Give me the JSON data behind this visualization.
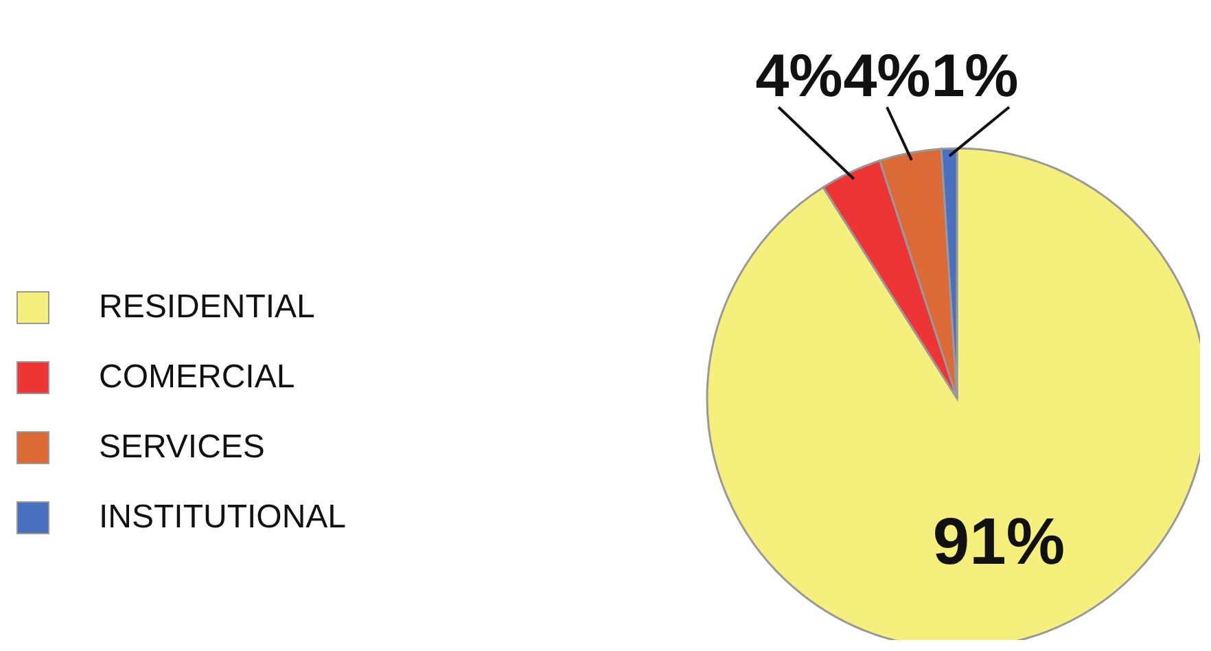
{
  "chart_data": {
    "type": "pie",
    "categories": [
      "RESIDENTIAL",
      "COMERCIAL",
      "SERVICES",
      "INSTITUTIONAL"
    ],
    "values": [
      91,
      4,
      4,
      1
    ],
    "colors": [
      "#f5ef7c",
      "#ee3535",
      "#dc6a36",
      "#4a70c0"
    ],
    "value_labels": [
      "91%",
      "4%",
      "4%",
      "1%"
    ],
    "legend": "left"
  }
}
